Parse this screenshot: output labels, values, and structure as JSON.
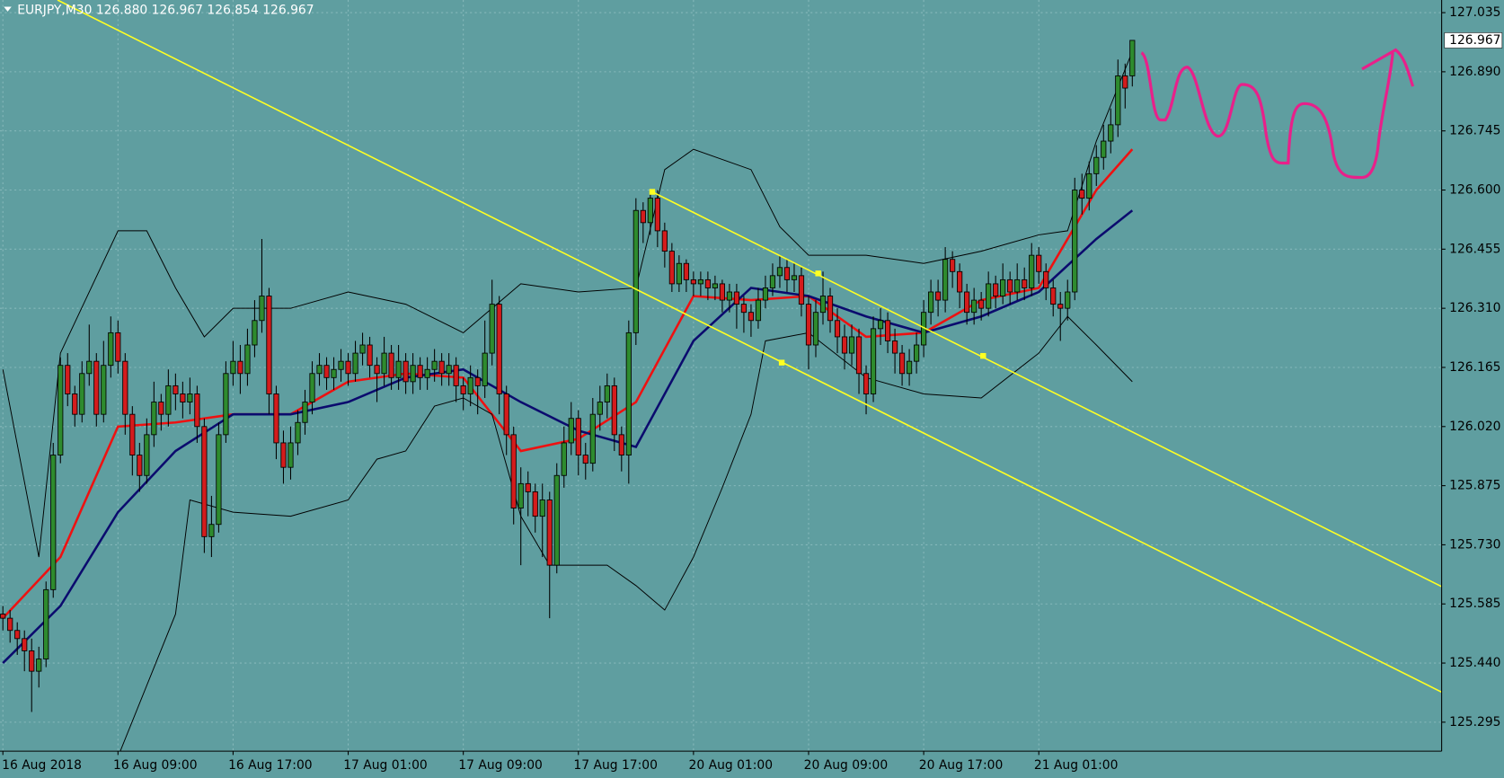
{
  "chart_data": {
    "type": "candlestick",
    "title": "EURJPY,M30  126.880 126.967 126.854 126.967",
    "last_price": 126.967,
    "up_color": "#2e8b2e",
    "down_color": "#d41c1c",
    "grid": true,
    "xlim": [
      -0.4,
      200
    ],
    "xticks": [
      {
        "value": 0,
        "label": "16 Aug 2018"
      },
      {
        "value": 16,
        "label": "16 Aug 09:00"
      },
      {
        "value": 32,
        "label": "16 Aug 17:00"
      },
      {
        "value": 48,
        "label": "17 Aug 01:00"
      },
      {
        "value": 64,
        "label": "17 Aug 09:00"
      },
      {
        "value": 80,
        "label": "17 Aug 17:00"
      },
      {
        "value": 96,
        "label": "20 Aug 01:00"
      },
      {
        "value": 112,
        "label": "20 Aug 09:00"
      },
      {
        "value": 128,
        "label": "20 Aug 17:00"
      },
      {
        "value": 144,
        "label": "21 Aug 01:00"
      }
    ],
    "ylim": [
      125.224,
      127.066
    ],
    "yticks": [
      127.035,
      {
        "value": 126.89,
        "label": "126.890"
      },
      126.745,
      {
        "value": 126.6,
        "label": "126.600"
      },
      126.455,
      {
        "value": 126.31,
        "label": "126.310"
      },
      126.165,
      {
        "value": 126.02,
        "label": "126.020"
      },
      125.875,
      {
        "value": 125.73,
        "label": "125.730"
      },
      125.585,
      {
        "value": 125.44,
        "label": "125.440"
      },
      125.295
    ],
    "candles": [
      [
        125.56,
        125.58,
        125.52,
        125.55
      ],
      [
        125.55,
        125.57,
        125.49,
        125.52
      ],
      [
        125.52,
        125.54,
        125.46,
        125.5
      ],
      [
        125.5,
        125.52,
        125.42,
        125.47
      ],
      [
        125.47,
        125.5,
        125.32,
        125.42
      ],
      [
        125.42,
        125.48,
        125.38,
        125.45
      ],
      [
        125.45,
        125.64,
        125.43,
        125.62
      ],
      [
        125.62,
        125.98,
        125.6,
        125.95
      ],
      [
        125.95,
        126.19,
        125.93,
        126.17
      ],
      [
        126.17,
        126.2,
        126.07,
        126.1
      ],
      [
        126.1,
        126.12,
        126.02,
        126.05
      ],
      [
        126.05,
        126.18,
        126.03,
        126.15
      ],
      [
        126.15,
        126.27,
        126.12,
        126.18
      ],
      [
        126.18,
        126.2,
        126.02,
        126.05
      ],
      [
        126.05,
        126.23,
        126.03,
        126.17
      ],
      [
        126.17,
        126.29,
        126.14,
        126.25
      ],
      [
        126.25,
        126.28,
        126.15,
        126.18
      ],
      [
        126.18,
        126.2,
        126,
        126.05
      ],
      [
        126.05,
        126.07,
        125.9,
        125.95
      ],
      [
        125.95,
        125.98,
        125.86,
        125.9
      ],
      [
        125.9,
        126.04,
        125.88,
        126
      ],
      [
        126,
        126.13,
        125.97,
        126.08
      ],
      [
        126.08,
        126.1,
        126.01,
        126.05
      ],
      [
        126.05,
        126.16,
        126.02,
        126.12
      ],
      [
        126.12,
        126.15,
        126.06,
        126.1
      ],
      [
        126.1,
        126.13,
        126.04,
        126.08
      ],
      [
        126.08,
        126.14,
        126.05,
        126.1
      ],
      [
        126.1,
        126.12,
        125.98,
        126.02
      ],
      [
        126.02,
        126.04,
        125.71,
        125.75
      ],
      [
        125.75,
        125.85,
        125.7,
        125.78
      ],
      [
        125.78,
        126.03,
        125.76,
        126
      ],
      [
        126,
        126.18,
        125.98,
        126.15
      ],
      [
        126.15,
        126.23,
        126.12,
        126.18
      ],
      [
        126.18,
        126.22,
        126.1,
        126.15
      ],
      [
        126.15,
        126.26,
        126.12,
        126.22
      ],
      [
        126.22,
        126.33,
        126.19,
        126.28
      ],
      [
        126.28,
        126.48,
        126.25,
        126.34
      ],
      [
        126.34,
        126.36,
        126.05,
        126.1
      ],
      [
        126.1,
        126.12,
        125.94,
        125.98
      ],
      [
        125.98,
        126.01,
        125.88,
        125.92
      ],
      [
        125.92,
        126.02,
        125.89,
        125.98
      ],
      [
        125.98,
        126.06,
        125.95,
        126.03
      ],
      [
        126.03,
        126.11,
        126,
        126.08
      ],
      [
        126.08,
        126.18,
        126.05,
        126.15
      ],
      [
        126.15,
        126.2,
        126.12,
        126.17
      ],
      [
        126.17,
        126.19,
        126.11,
        126.14
      ],
      [
        126.14,
        126.19,
        126.11,
        126.16
      ],
      [
        126.16,
        126.21,
        126.13,
        126.18
      ],
      [
        126.18,
        126.2,
        126.12,
        126.15
      ],
      [
        126.15,
        126.23,
        126.13,
        126.2
      ],
      [
        126.2,
        126.25,
        126.17,
        126.22
      ],
      [
        126.22,
        126.24,
        126.14,
        126.17
      ],
      [
        126.17,
        126.19,
        126.08,
        126.15
      ],
      [
        126.15,
        126.24,
        126.12,
        126.2
      ],
      [
        126.2,
        126.22,
        126.11,
        126.14
      ],
      [
        126.14,
        126.22,
        126.11,
        126.18
      ],
      [
        126.18,
        126.2,
        126.1,
        126.13
      ],
      [
        126.13,
        126.2,
        126.1,
        126.17
      ],
      [
        126.17,
        126.19,
        126.11,
        126.14
      ],
      [
        126.14,
        126.19,
        126.11,
        126.16
      ],
      [
        126.16,
        126.21,
        126.13,
        126.18
      ],
      [
        126.18,
        126.2,
        126.12,
        126.15
      ],
      [
        126.15,
        126.2,
        126.12,
        126.17
      ],
      [
        126.17,
        126.19,
        126.08,
        126.12
      ],
      [
        126.12,
        126.14,
        126.06,
        126.1
      ],
      [
        126.1,
        126.17,
        126.07,
        126.14
      ],
      [
        126.14,
        126.16,
        126.05,
        126.12
      ],
      [
        126.12,
        126.28,
        126.09,
        126.2
      ],
      [
        126.2,
        126.38,
        126.17,
        126.32
      ],
      [
        126.32,
        126.34,
        126.05,
        126.1
      ],
      [
        126.1,
        126.12,
        125.95,
        126
      ],
      [
        126,
        126.02,
        125.78,
        125.82
      ],
      [
        125.82,
        125.92,
        125.68,
        125.88
      ],
      [
        125.88,
        125.91,
        125.8,
        125.86
      ],
      [
        125.86,
        125.88,
        125.76,
        125.8
      ],
      [
        125.8,
        125.88,
        125.7,
        125.84
      ],
      [
        125.84,
        125.86,
        125.55,
        125.68
      ],
      [
        125.68,
        125.93,
        125.66,
        125.9
      ],
      [
        125.9,
        126.02,
        125.87,
        125.98
      ],
      [
        125.98,
        126.08,
        125.95,
        126.04
      ],
      [
        126.04,
        126.06,
        125.9,
        125.95
      ],
      [
        125.95,
        125.98,
        125.89,
        125.93
      ],
      [
        125.93,
        126.09,
        125.91,
        126.05
      ],
      [
        126.05,
        126.12,
        126.01,
        126.08
      ],
      [
        126.08,
        126.15,
        126.04,
        126.12
      ],
      [
        126.12,
        126.14,
        125.96,
        126
      ],
      [
        126,
        126.02,
        125.91,
        125.95
      ],
      [
        125.95,
        126.28,
        125.88,
        126.25
      ],
      [
        126.25,
        126.58,
        126.22,
        126.55
      ],
      [
        126.55,
        126.57,
        126.47,
        126.52
      ],
      [
        126.52,
        126.6,
        126.49,
        126.58
      ],
      [
        126.58,
        126.6,
        126.46,
        126.5
      ],
      [
        126.5,
        126.52,
        126.41,
        126.45
      ],
      [
        126.45,
        126.47,
        126.35,
        126.37
      ],
      [
        126.37,
        126.44,
        126.35,
        126.42
      ],
      [
        126.42,
        126.43,
        126.35,
        126.38
      ],
      [
        126.38,
        126.4,
        126.34,
        126.37
      ],
      [
        126.37,
        126.4,
        126.34,
        126.38
      ],
      [
        126.38,
        126.4,
        126.33,
        126.36
      ],
      [
        126.36,
        126.39,
        126.33,
        126.37
      ],
      [
        126.37,
        126.38,
        126.3,
        126.33
      ],
      [
        126.33,
        126.37,
        126.3,
        126.35
      ],
      [
        126.35,
        126.37,
        126.26,
        126.32
      ],
      [
        126.32,
        126.34,
        126.25,
        126.3
      ],
      [
        126.3,
        126.32,
        126.24,
        126.28
      ],
      [
        126.28,
        126.36,
        126.26,
        126.33
      ],
      [
        126.33,
        126.39,
        126.31,
        126.36
      ],
      [
        126.36,
        126.42,
        126.34,
        126.39
      ],
      [
        126.39,
        126.44,
        126.36,
        126.41
      ],
      [
        126.41,
        126.43,
        126.35,
        126.38
      ],
      [
        126.38,
        126.42,
        126.35,
        126.39
      ],
      [
        126.39,
        126.41,
        126.29,
        126.32
      ],
      [
        126.32,
        126.34,
        126.16,
        126.22
      ],
      [
        126.22,
        126.33,
        126.19,
        126.3
      ],
      [
        126.3,
        126.4,
        126.27,
        126.34
      ],
      [
        126.34,
        126.36,
        126.25,
        126.28
      ],
      [
        126.28,
        126.31,
        126.2,
        126.24
      ],
      [
        126.24,
        126.27,
        126.16,
        126.2
      ],
      [
        126.2,
        126.27,
        126.17,
        126.24
      ],
      [
        126.24,
        126.26,
        126.1,
        126.15
      ],
      [
        126.15,
        126.17,
        126.05,
        126.1
      ],
      [
        126.1,
        126.29,
        126.08,
        126.26
      ],
      [
        126.26,
        126.31,
        126.22,
        126.28
      ],
      [
        126.28,
        126.3,
        126.2,
        126.23
      ],
      [
        126.23,
        126.26,
        126.15,
        126.2
      ],
      [
        126.2,
        126.22,
        126.12,
        126.15
      ],
      [
        126.15,
        126.21,
        126.12,
        126.18
      ],
      [
        126.18,
        126.25,
        126.15,
        126.22
      ],
      [
        126.22,
        126.33,
        126.19,
        126.3
      ],
      [
        126.3,
        126.38,
        126.27,
        126.35
      ],
      [
        126.35,
        126.38,
        126.29,
        126.33
      ],
      [
        126.33,
        126.46,
        126.3,
        126.43
      ],
      [
        126.43,
        126.45,
        126.36,
        126.4
      ],
      [
        126.4,
        126.42,
        126.31,
        126.35
      ],
      [
        126.35,
        126.37,
        126.27,
        126.3
      ],
      [
        126.3,
        126.36,
        126.27,
        126.33
      ],
      [
        126.33,
        126.35,
        126.28,
        126.31
      ],
      [
        126.31,
        126.4,
        126.29,
        126.37
      ],
      [
        126.37,
        126.39,
        126.31,
        126.34
      ],
      [
        126.34,
        126.42,
        126.32,
        126.38
      ],
      [
        126.38,
        126.4,
        126.32,
        126.35
      ],
      [
        126.35,
        126.42,
        126.33,
        126.38
      ],
      [
        126.38,
        126.41,
        126.33,
        126.36
      ],
      [
        126.36,
        126.47,
        126.34,
        126.44
      ],
      [
        126.44,
        126.46,
        126.37,
        126.4
      ],
      [
        126.4,
        126.42,
        126.33,
        126.36
      ],
      [
        126.36,
        126.38,
        126.29,
        126.32
      ],
      [
        126.32,
        126.35,
        126.23,
        126.31
      ],
      [
        126.31,
        126.38,
        126.28,
        126.35
      ],
      [
        126.35,
        126.63,
        126.33,
        126.6
      ],
      [
        126.6,
        126.64,
        126.54,
        126.58
      ],
      [
        126.58,
        126.67,
        126.55,
        126.64
      ],
      [
        126.64,
        126.71,
        126.61,
        126.68
      ],
      [
        126.68,
        126.76,
        126.65,
        126.72
      ],
      [
        126.72,
        126.8,
        126.69,
        126.76
      ],
      [
        126.76,
        126.92,
        126.73,
        126.88
      ],
      [
        126.88,
        126.91,
        126.8,
        126.85
      ],
      [
        126.88,
        126.967,
        126.854,
        126.967
      ]
    ],
    "series": [
      {
        "color": "#ee1111",
        "width": 2.4,
        "x": [
          0,
          8,
          16,
          24,
          32,
          40,
          48,
          56,
          64,
          72,
          80,
          88,
          96,
          104,
          112,
          120,
          128,
          136,
          144,
          152,
          157
        ],
        "values": [
          125.55,
          125.7,
          126.02,
          126.03,
          126.05,
          126.05,
          126.13,
          126.15,
          126.14,
          125.96,
          125.99,
          126.08,
          126.34,
          126.33,
          126.34,
          126.24,
          126.25,
          126.33,
          126.36,
          126.6,
          126.7
        ]
      },
      {
        "color": "#0b0b6e",
        "width": 2.4,
        "x": [
          0,
          8,
          16,
          24,
          32,
          40,
          48,
          56,
          64,
          72,
          80,
          88,
          96,
          104,
          112,
          120,
          128,
          136,
          144,
          152,
          157
        ],
        "values": [
          125.44,
          125.58,
          125.81,
          125.96,
          126.05,
          126.05,
          126.08,
          126.14,
          126.16,
          126.08,
          126.01,
          125.97,
          126.23,
          126.36,
          126.34,
          126.29,
          126.25,
          126.29,
          126.35,
          126.48,
          126.55
        ]
      },
      {
        "color": "#000000",
        "width": 0.9,
        "x": [
          0,
          5,
          8,
          16,
          20,
          24,
          28,
          32,
          40,
          48,
          56,
          64,
          68,
          72,
          80,
          88,
          92,
          96,
          104,
          108,
          112,
          120,
          128,
          136,
          144,
          148,
          152,
          157
        ],
        "values": [
          126.16,
          125.7,
          126.2,
          126.5,
          126.5,
          126.36,
          126.24,
          126.31,
          126.31,
          126.35,
          126.32,
          126.25,
          126.31,
          126.37,
          126.35,
          126.36,
          126.65,
          126.7,
          126.65,
          126.51,
          126.44,
          126.44,
          126.42,
          126.45,
          126.49,
          126.5,
          126.72,
          126.94
        ]
      },
      {
        "color": "#000000",
        "width": 0.9,
        "x": [
          16,
          24,
          26,
          32,
          40,
          48,
          52,
          56,
          60,
          64,
          68,
          72,
          76,
          84,
          88,
          92,
          96,
          100,
          104,
          106,
          112,
          120,
          128,
          136,
          144,
          148,
          152,
          157
        ],
        "values": [
          125.21,
          125.56,
          125.84,
          125.81,
          125.8,
          125.84,
          125.94,
          125.96,
          126.07,
          126.09,
          126.05,
          125.8,
          125.68,
          125.68,
          125.63,
          125.57,
          125.7,
          125.87,
          126.05,
          126.23,
          126.25,
          126.14,
          126.1,
          126.09,
          126.2,
          126.29,
          126.22,
          126.13
        ]
      }
    ]
  }
}
